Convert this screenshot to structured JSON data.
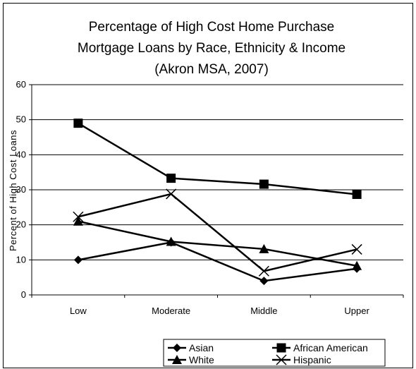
{
  "chart_data": {
    "type": "line",
    "title": [
      "Percentage of High Cost Home Purchase",
      "Mortgage Loans by Race, Ethnicity & Income",
      "(Akron MSA, 2007)"
    ],
    "xlabel": "",
    "ylabel": "Percent of High Cost Loans",
    "categories": [
      "Low",
      "Moderate",
      "Middle",
      "Upper"
    ],
    "ylim": [
      0,
      60
    ],
    "yticks": [
      0,
      10,
      20,
      30,
      40,
      50,
      60
    ],
    "grid": "horizontal",
    "legend_position": "bottom-right",
    "series": [
      {
        "name": "Asian",
        "marker": "diamond",
        "values": [
          10,
          15,
          4,
          7.5
        ]
      },
      {
        "name": "African American",
        "marker": "square",
        "values": [
          49,
          33.3,
          31.6,
          28.7
        ]
      },
      {
        "name": "White",
        "marker": "triangle",
        "values": [
          21,
          15.2,
          13.1,
          8.3
        ]
      },
      {
        "name": "Hispanic",
        "marker": "x",
        "values": [
          22.3,
          28.8,
          6.8,
          13
        ]
      }
    ],
    "colors": {
      "line": "#000000",
      "grid": "#000000",
      "background": "#ffffff"
    }
  }
}
